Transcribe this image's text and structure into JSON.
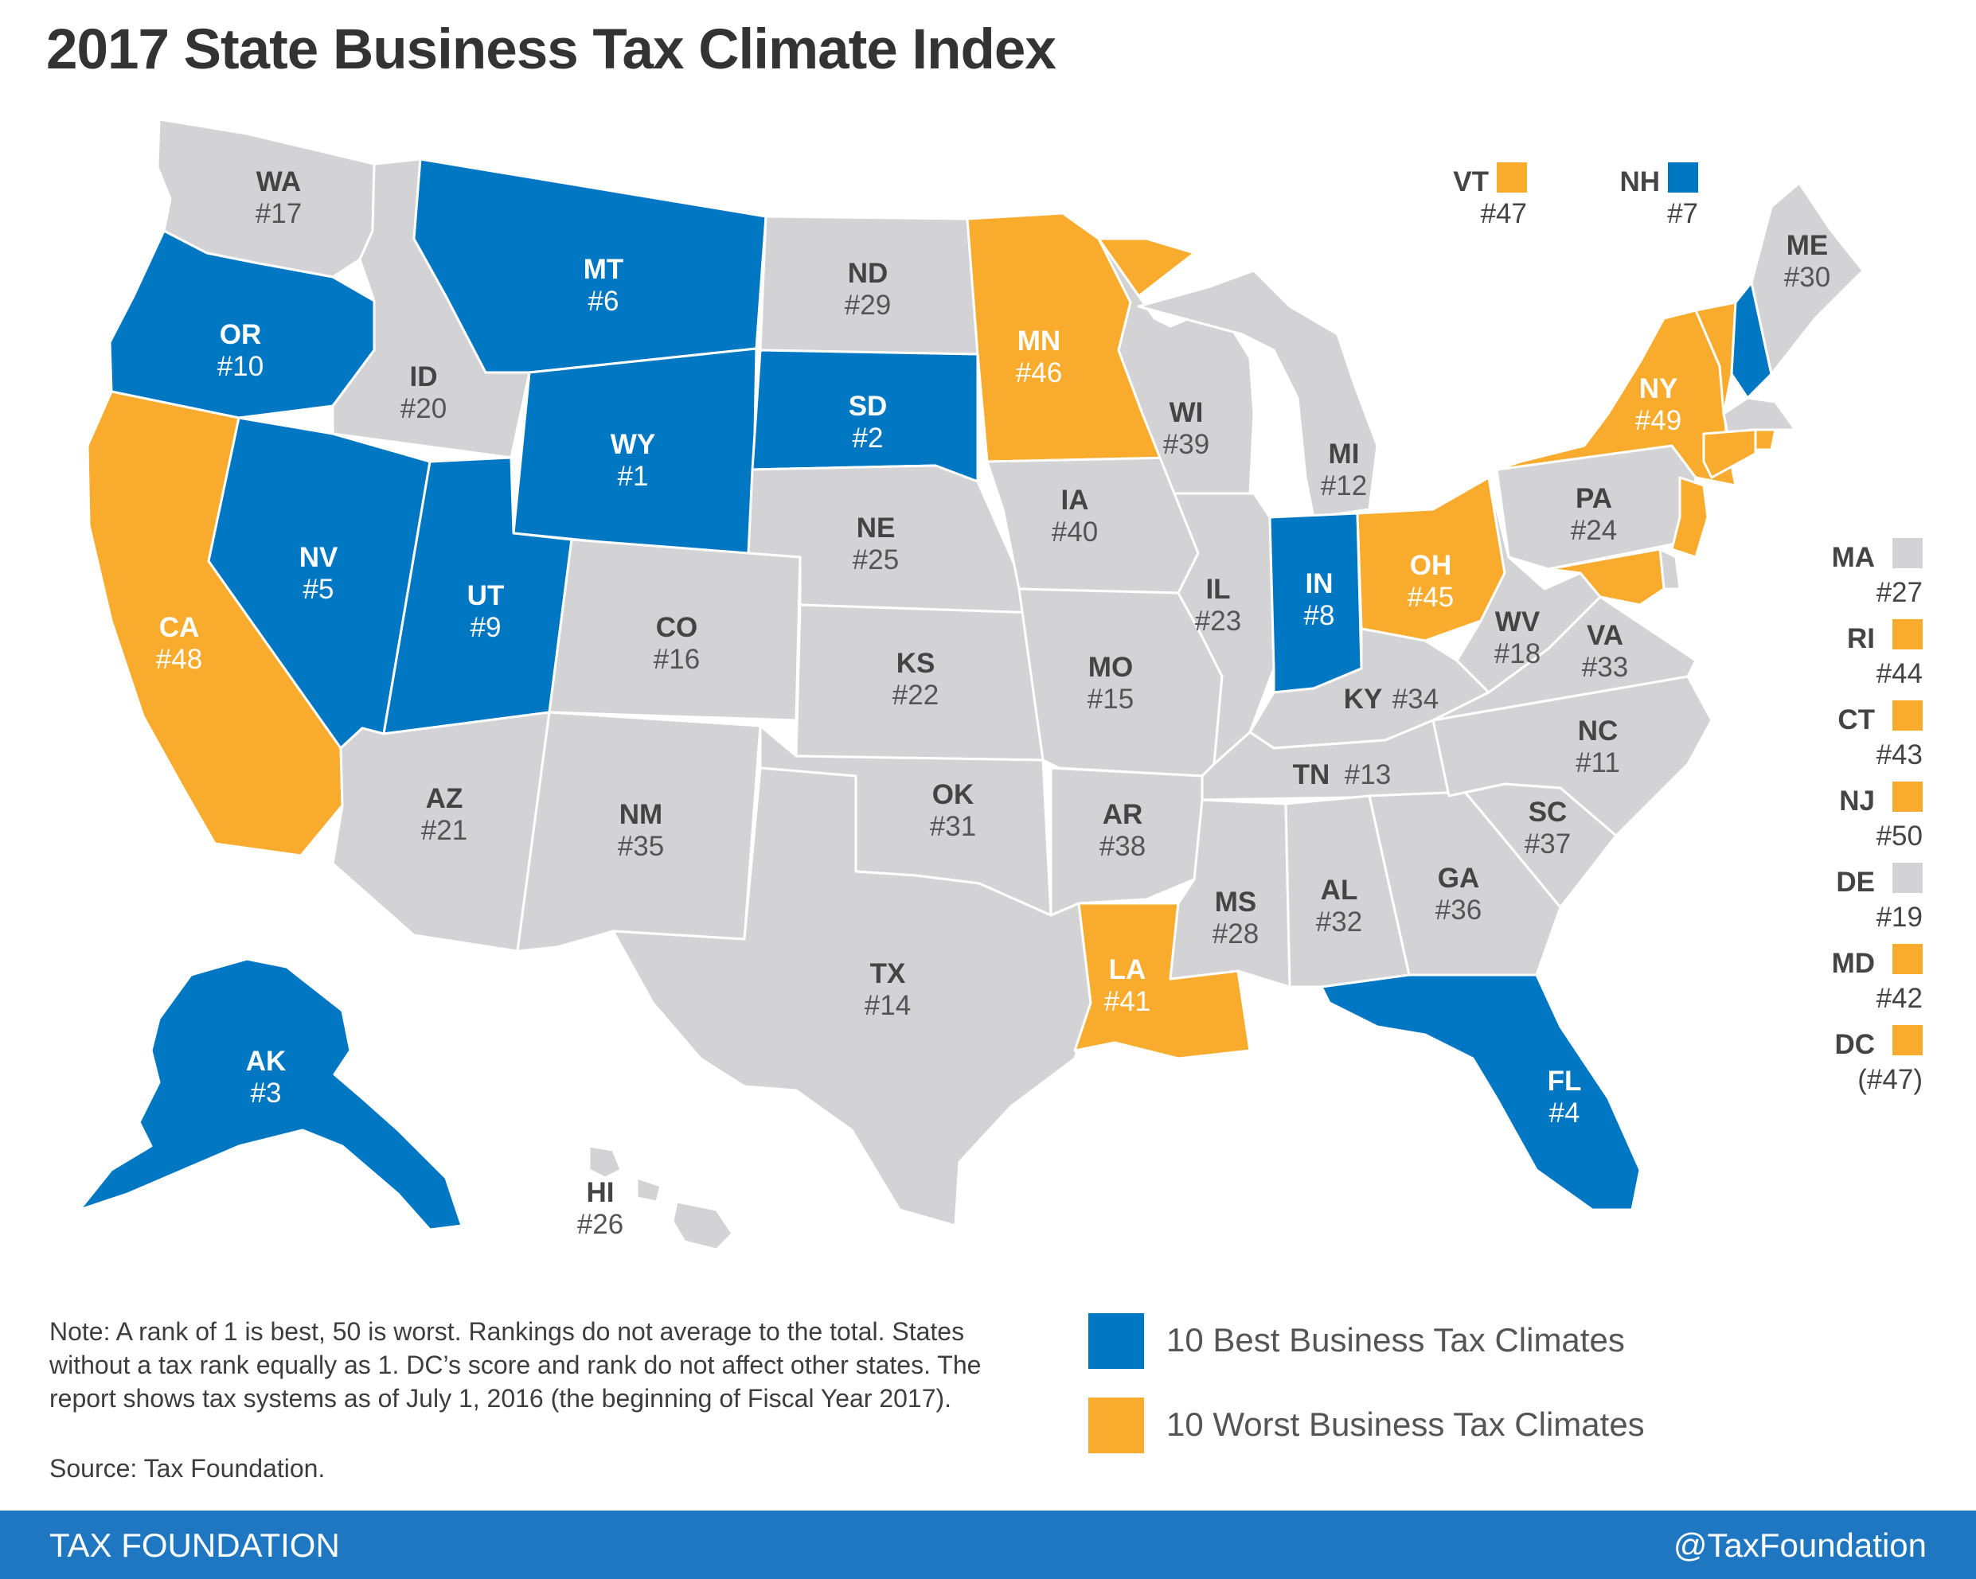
{
  "title": "2017 State Business Tax Climate Index",
  "colors": {
    "best": "#0077c2",
    "worst": "#f9ab2e",
    "neutral": "#d3d3d5",
    "border": "#ffffff",
    "footer": "#1e77c0"
  },
  "states": [
    {
      "abbr": "WA",
      "rank": "#17",
      "category": "neutral"
    },
    {
      "abbr": "OR",
      "rank": "#10",
      "category": "best"
    },
    {
      "abbr": "CA",
      "rank": "#48",
      "category": "worst"
    },
    {
      "abbr": "ID",
      "rank": "#20",
      "category": "neutral"
    },
    {
      "abbr": "NV",
      "rank": "#5",
      "category": "best"
    },
    {
      "abbr": "MT",
      "rank": "#6",
      "category": "best"
    },
    {
      "abbr": "WY",
      "rank": "#1",
      "category": "best"
    },
    {
      "abbr": "UT",
      "rank": "#9",
      "category": "best"
    },
    {
      "abbr": "AZ",
      "rank": "#21",
      "category": "neutral"
    },
    {
      "abbr": "CO",
      "rank": "#16",
      "category": "neutral"
    },
    {
      "abbr": "NM",
      "rank": "#35",
      "category": "neutral"
    },
    {
      "abbr": "ND",
      "rank": "#29",
      "category": "neutral"
    },
    {
      "abbr": "SD",
      "rank": "#2",
      "category": "best"
    },
    {
      "abbr": "NE",
      "rank": "#25",
      "category": "neutral"
    },
    {
      "abbr": "KS",
      "rank": "#22",
      "category": "neutral"
    },
    {
      "abbr": "OK",
      "rank": "#31",
      "category": "neutral"
    },
    {
      "abbr": "TX",
      "rank": "#14",
      "category": "neutral"
    },
    {
      "abbr": "MN",
      "rank": "#46",
      "category": "worst"
    },
    {
      "abbr": "IA",
      "rank": "#40",
      "category": "neutral"
    },
    {
      "abbr": "MO",
      "rank": "#15",
      "category": "neutral"
    },
    {
      "abbr": "AR",
      "rank": "#38",
      "category": "neutral"
    },
    {
      "abbr": "LA",
      "rank": "#41",
      "category": "worst"
    },
    {
      "abbr": "WI",
      "rank": "#39",
      "category": "neutral"
    },
    {
      "abbr": "IL",
      "rank": "#23",
      "category": "neutral"
    },
    {
      "abbr": "MI",
      "rank": "#12",
      "category": "neutral"
    },
    {
      "abbr": "IN",
      "rank": "#8",
      "category": "best"
    },
    {
      "abbr": "OH",
      "rank": "#45",
      "category": "worst"
    },
    {
      "abbr": "KY",
      "rank": "#34",
      "category": "neutral"
    },
    {
      "abbr": "TN",
      "rank": "#13",
      "category": "neutral"
    },
    {
      "abbr": "MS",
      "rank": "#28",
      "category": "neutral"
    },
    {
      "abbr": "AL",
      "rank": "#32",
      "category": "neutral"
    },
    {
      "abbr": "GA",
      "rank": "#36",
      "category": "neutral"
    },
    {
      "abbr": "FL",
      "rank": "#4",
      "category": "best"
    },
    {
      "abbr": "SC",
      "rank": "#37",
      "category": "neutral"
    },
    {
      "abbr": "NC",
      "rank": "#11",
      "category": "neutral"
    },
    {
      "abbr": "VA",
      "rank": "#33",
      "category": "neutral"
    },
    {
      "abbr": "WV",
      "rank": "#18",
      "category": "neutral"
    },
    {
      "abbr": "PA",
      "rank": "#24",
      "category": "neutral"
    },
    {
      "abbr": "NY",
      "rank": "#49",
      "category": "worst"
    },
    {
      "abbr": "ME",
      "rank": "#30",
      "category": "neutral"
    },
    {
      "abbr": "AK",
      "rank": "#3",
      "category": "best"
    },
    {
      "abbr": "HI",
      "rank": "#26",
      "category": "neutral"
    }
  ],
  "callouts_top": [
    {
      "abbr": "VT",
      "rank": "#47",
      "category": "worst"
    },
    {
      "abbr": "NH",
      "rank": "#7",
      "category": "best"
    }
  ],
  "callouts_side": [
    {
      "abbr": "MA",
      "rank": "#27",
      "category": "neutral"
    },
    {
      "abbr": "RI",
      "rank": "#44",
      "category": "worst"
    },
    {
      "abbr": "CT",
      "rank": "#43",
      "category": "worst"
    },
    {
      "abbr": "NJ",
      "rank": "#50",
      "category": "worst"
    },
    {
      "abbr": "DE",
      "rank": "#19",
      "category": "neutral"
    },
    {
      "abbr": "MD",
      "rank": "#42",
      "category": "worst"
    },
    {
      "abbr": "DC",
      "rank": "(#47)",
      "category": "worst"
    }
  ],
  "legend": {
    "best": "10 Best Business Tax Climates",
    "worst": "10 Worst Business Tax Climates"
  },
  "note": "Note: A rank of 1 is best, 50 is worst. Rankings do not average to the total. States without a tax rank equally as 1. DC’s score and rank do not affect other states. The report shows tax systems as of July 1, 2016 (the beginning of Fiscal Year 2017).",
  "source": "Source: Tax Foundation.",
  "footer": {
    "brand": "TAX FOUNDATION",
    "handle": "@TaxFoundation"
  }
}
